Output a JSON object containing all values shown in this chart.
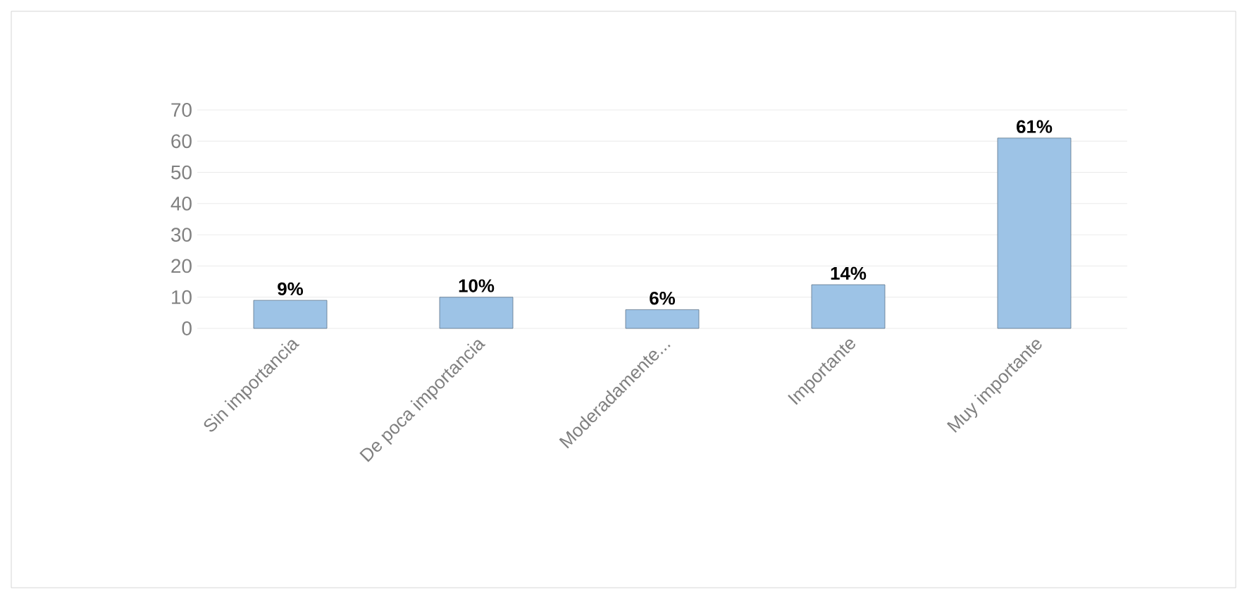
{
  "chart_data": {
    "type": "bar",
    "categories": [
      "Sin importancia",
      "De poca importancia",
      "Moderadamente...",
      "Importante",
      "Muy importante"
    ],
    "values": [
      9,
      10,
      6,
      14,
      61
    ],
    "value_labels": [
      "9%",
      "10%",
      "6%",
      "14%",
      "61%"
    ],
    "color": "#9dc3e6",
    "ylim": [
      0,
      70
    ],
    "yticks": [
      0,
      10,
      20,
      30,
      40,
      50,
      60,
      70
    ],
    "grid": "y"
  }
}
